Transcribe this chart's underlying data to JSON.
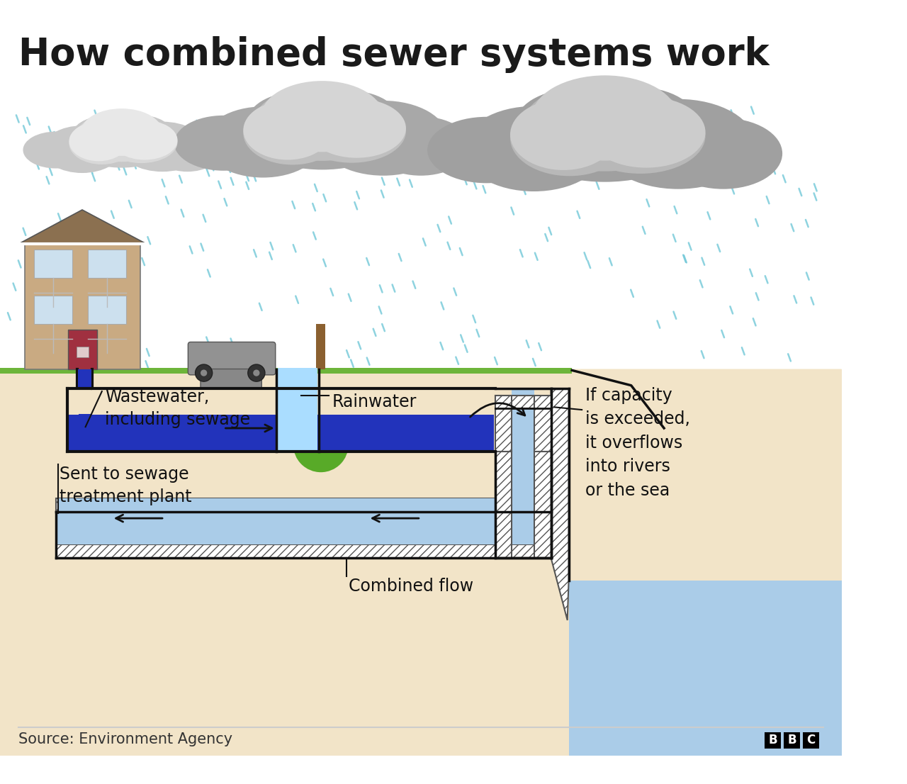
{
  "title": "How combined sewer systems work",
  "source_text": "Source: Environment Agency",
  "bg": "#ffffff",
  "ground_fill": "#f2e4c8",
  "grass_green": "#6db53a",
  "rain_color": "#72c8d8",
  "cloud_dark": "#b0b0b0",
  "cloud_mid": "#c8c8c8",
  "cloud_light": "#e0e0e0",
  "house_wall": "#c9aa82",
  "house_roof": "#8b7050",
  "house_door": "#a03040",
  "house_win": "#cce0ee",
  "tree_green": "#58aa28",
  "tree_trunk": "#8b6030",
  "car_col": "#929292",
  "ww_blue": "#2233bb",
  "rain_blue": "#aaddff",
  "combined_blue": "#aacce8",
  "sea_blue": "#aacce8",
  "hatch_bg": "#e8e8e8",
  "label_wastewater": "Wastewater,\nincluding sewage",
  "label_rainwater": "Rainwater",
  "label_overflow": "If capacity\nis exceeded,\nit overflows\ninto rivers\nor the sea",
  "label_treatment": "Sent to sewage\ntreatment plant",
  "label_combined": "Combined flow",
  "fig_w": 12.8,
  "fig_h": 11.06,
  "dpi": 100
}
